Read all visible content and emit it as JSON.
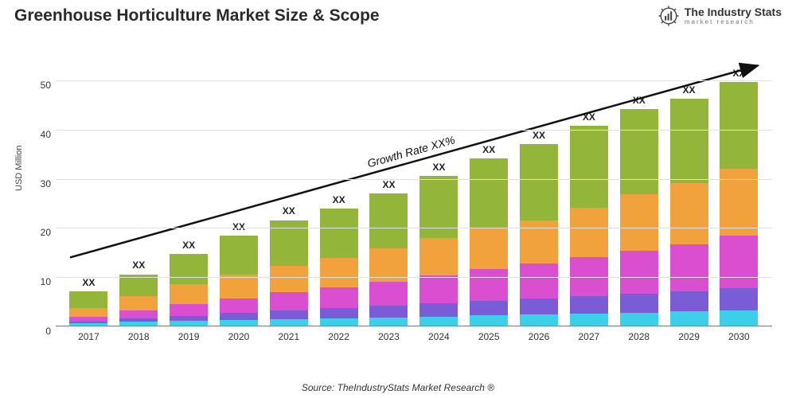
{
  "title": "Greenhouse Horticulture Market Size & Scope",
  "logo": {
    "main": "The Industry Stats",
    "sub": "market research"
  },
  "chart": {
    "type": "stacked-bar",
    "ylabel": "USD Million",
    "ylim": [
      0,
      55
    ],
    "yticks": [
      0,
      10,
      20,
      30,
      40,
      50
    ],
    "categories": [
      "2017",
      "2018",
      "2019",
      "2020",
      "2021",
      "2022",
      "2023",
      "2024",
      "2025",
      "2026",
      "2027",
      "2028",
      "2029",
      "2030"
    ],
    "bar_top_label": "XX",
    "segment_colors": [
      "#3cd0e8",
      "#7a5cd6",
      "#d94fcf",
      "#f2a23c",
      "#93b53a"
    ],
    "series": [
      [
        0.6,
        0.3,
        1.0,
        1.8,
        3.5
      ],
      [
        0.9,
        0.8,
        1.6,
        2.9,
        4.4
      ],
      [
        1.1,
        1.0,
        2.4,
        4.1,
        6.1
      ],
      [
        1.3,
        1.4,
        3.0,
        4.8,
        7.9
      ],
      [
        1.5,
        1.8,
        3.6,
        5.4,
        9.3
      ],
      [
        1.6,
        2.1,
        4.2,
        6.0,
        10.0
      ],
      [
        1.8,
        2.4,
        4.9,
        6.8,
        11.1
      ],
      [
        2.0,
        2.7,
        5.6,
        7.6,
        12.6
      ],
      [
        2.2,
        3.0,
        6.4,
        8.3,
        14.3
      ],
      [
        2.4,
        3.3,
        7.1,
        8.8,
        15.5
      ],
      [
        2.6,
        3.6,
        7.8,
        10.1,
        16.6
      ],
      [
        2.8,
        3.9,
        8.6,
        11.5,
        17.3
      ],
      [
        3.0,
        4.2,
        9.4,
        12.5,
        17.1
      ],
      [
        3.3,
        4.5,
        10.6,
        13.6,
        17.6
      ]
    ],
    "background_color": "#ffffff",
    "grid_color": "#e0e0e0",
    "trend": {
      "label": "Growth Rate XX%",
      "x1_pct": 2,
      "y1_val": 14,
      "x2_pct": 98,
      "y2_val": 53
    }
  },
  "source": "Source: TheIndustryStats Market Research ®"
}
